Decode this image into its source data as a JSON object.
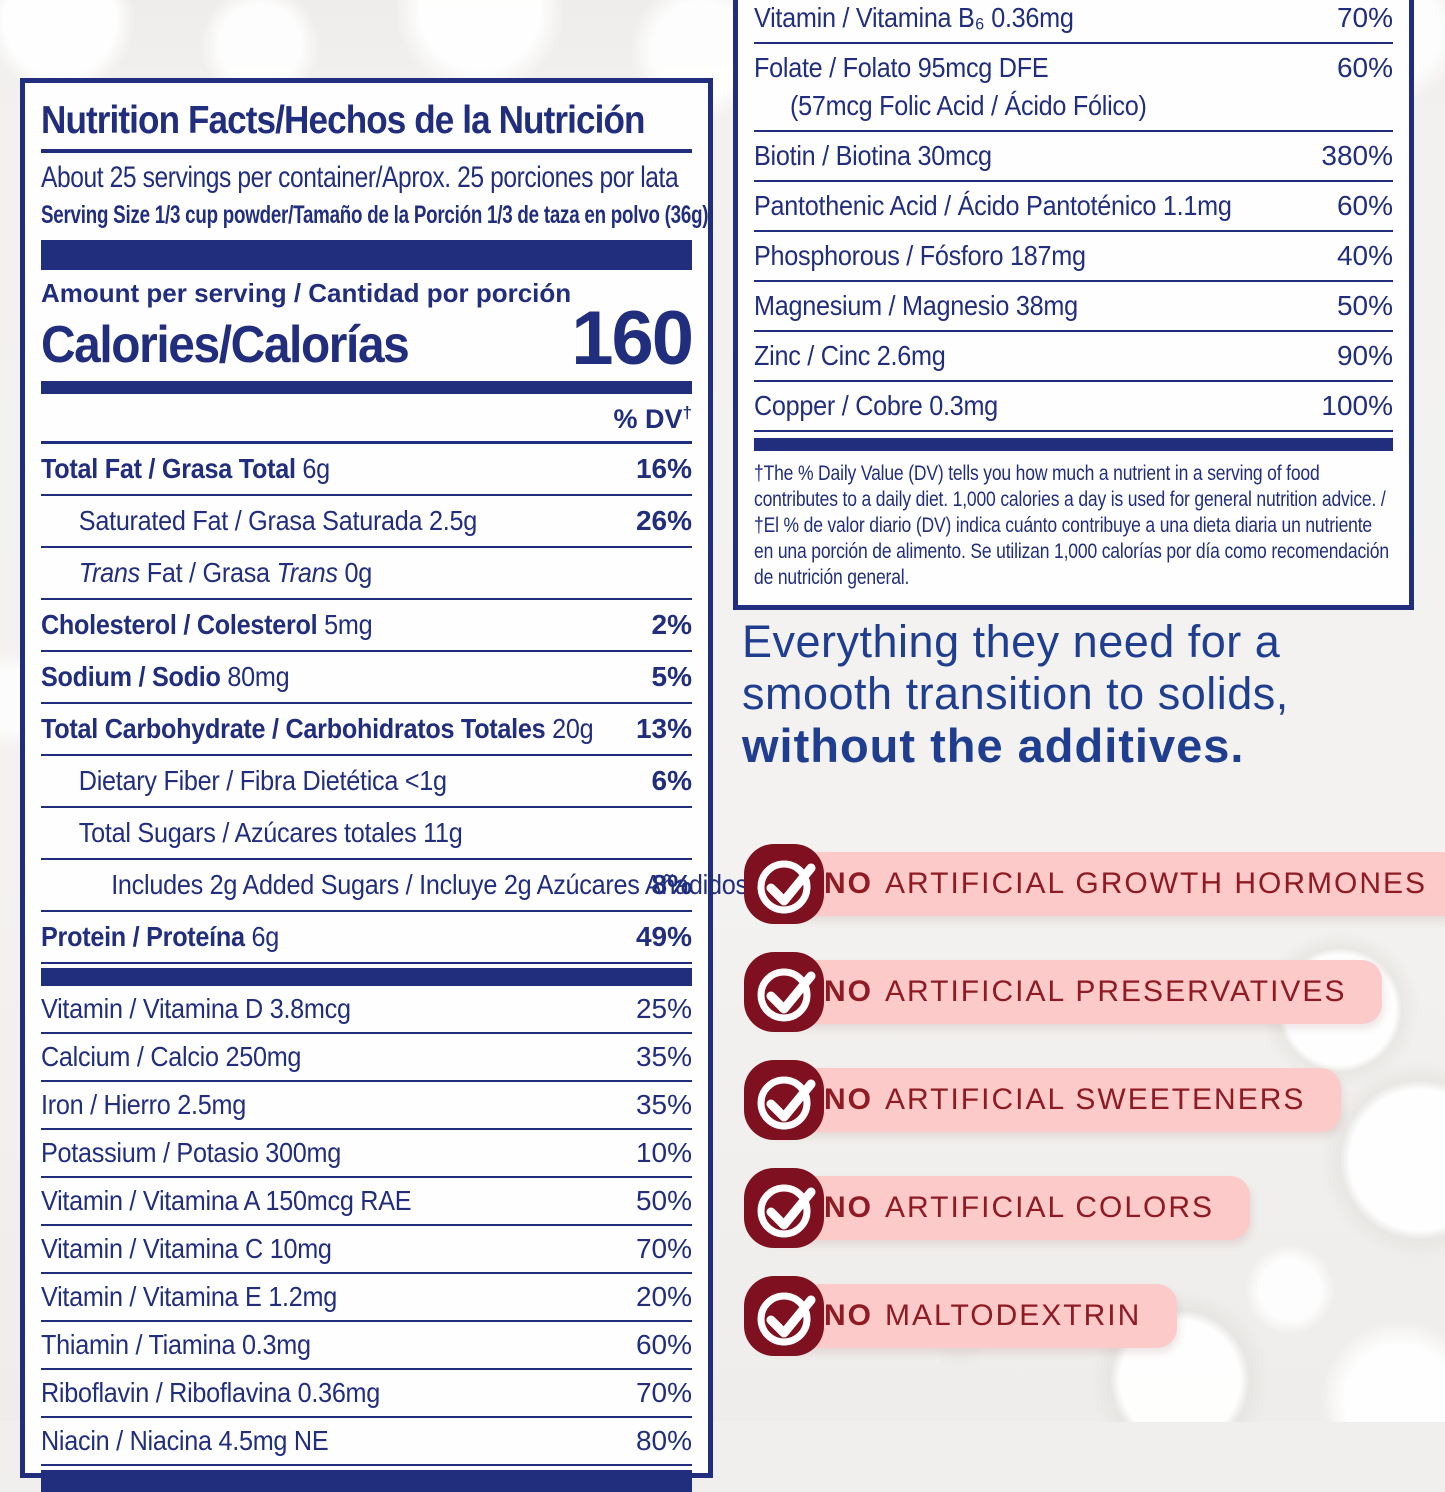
{
  "colors": {
    "navy": "#212e7e",
    "marketing_blue": "#1f3e8f",
    "badge_text_maroon": "#8e1a24",
    "badge_icon_maroon": "#7f1020",
    "badge_pink": "#fccac8",
    "panel_white": "#fffefe",
    "background": "#f1efed"
  },
  "label": {
    "title": "Nutrition Facts/Hechos de la Nutrición",
    "servings": "About 25 servings per container/Aprox. 25 porciones por lata",
    "serving_size": "Serving Size 1/3 cup powder/Tamaño de la Porción 1/3 de taza en polvo (36g)",
    "amount_label": "Amount per serving / Cantidad por porción",
    "calories_label": "Calories/Calorías",
    "calories_value": "160",
    "dv_header": "% DV",
    "dv_dagger": "†",
    "main_rows": [
      {
        "name": "Total Fat / Grasa Total",
        "amount": "6g",
        "dv": "16%",
        "b": true,
        "dvb": true,
        "i": 0
      },
      {
        "name": "Saturated Fat / Grasa Saturada",
        "amount": "2.5g",
        "dv": "26%",
        "b": false,
        "dvb": true,
        "i": 1
      },
      {
        "parts": [
          {
            "t": "Trans",
            "it": true
          },
          {
            "t": " Fat / Grasa ",
            "it": false
          },
          {
            "t": "Trans",
            "it": true
          }
        ],
        "amount": "0g",
        "dv": "",
        "b": false,
        "dvb": false,
        "i": 1
      },
      {
        "name": "Cholesterol / Colesterol",
        "amount": "5mg",
        "dv": "2%",
        "b": true,
        "dvb": true,
        "i": 0
      },
      {
        "name": "Sodium / Sodio",
        "amount": "80mg",
        "dv": "5%",
        "b": true,
        "dvb": true,
        "i": 0
      },
      {
        "name": "Total Carbohydrate / Carbohidratos Totales",
        "amount": "20g",
        "dv": "13%",
        "b": true,
        "dvb": true,
        "i": 0
      },
      {
        "name": "Dietary Fiber / Fibra Dietética",
        "amount": "<1g",
        "dv": "6%",
        "b": false,
        "dvb": true,
        "i": 1
      },
      {
        "name": "Total Sugars / Azúcares totales",
        "amount": "11g",
        "dv": "",
        "b": false,
        "dvb": false,
        "i": 1
      },
      {
        "name": "Includes 2g Added Sugars / Incluye 2g Azúcares Añadidos",
        "amount": "",
        "dv": "8%",
        "b": false,
        "dvb": true,
        "i": 2
      },
      {
        "name": "Protein / Proteína",
        "amount": "6g",
        "dv": "49%",
        "b": true,
        "dvb": true,
        "i": 0
      }
    ],
    "vitamin_rows": [
      {
        "name": "Vitamin / Vitamina D",
        "amount": "3.8mcg",
        "dv": "25%"
      },
      {
        "name": "Calcium / Calcio",
        "amount": "250mg",
        "dv": "35%"
      },
      {
        "name": "Iron / Hierro",
        "amount": "2.5mg",
        "dv": "35%"
      },
      {
        "name": "Potassium / Potasio",
        "amount": "300mg",
        "dv": "10%"
      },
      {
        "name": "Vitamin / Vitamina A",
        "amount": "150mcg RAE",
        "dv": "50%"
      },
      {
        "name": "Vitamin / Vitamina C",
        "amount": "10mg",
        "dv": "70%"
      },
      {
        "name": "Vitamin / Vitamina E",
        "amount": "1.2mg",
        "dv": "20%"
      },
      {
        "name": "Thiamin / Tiamina",
        "amount": "0.3mg",
        "dv": "60%"
      },
      {
        "name": "Riboflavin / Riboflavina",
        "amount": "0.36mg",
        "dv": "70%"
      },
      {
        "name": "Niacin / Niacina",
        "amount": "4.5mg NE",
        "dv": "80%"
      }
    ],
    "right_rows": [
      {
        "name": "Vitamin / Vitamina B₆",
        "amount": "0.36mg",
        "dv": "70%"
      },
      {
        "name": "Folate / Folato",
        "amount": "95mcg DFE",
        "dv": "60%",
        "sub": "(57mcg Folic Acid / Ácido Fólico)"
      },
      {
        "name": "Biotin / Biotina",
        "amount": "30mcg",
        "dv": "380%"
      },
      {
        "name": "Pantothenic Acid / Ácido Pantoténico",
        "amount": "1.1mg",
        "dv": "60%"
      },
      {
        "name": "Phosphorous / Fósforo",
        "amount": "187mg",
        "dv": "40%"
      },
      {
        "name": "Magnesium / Magnesio",
        "amount": "38mg",
        "dv": "50%"
      },
      {
        "name": "Zinc / Cinc",
        "amount": "2.6mg",
        "dv": "90%"
      },
      {
        "name": "Copper / Cobre",
        "amount": "0.3mg",
        "dv": "100%"
      }
    ],
    "footnote": "†The % Daily Value (DV) tells you how much a nutrient in a serving of food contributes to a daily diet. 1,000 calories a day is used for general nutrition advice. / †El % de valor diario (DV) indica cuánto contribuye a una dieta diaria un nutriente en una porción de alimento. Se utilizan 1,000 calorías por día como recomendación de nutrición general."
  },
  "marketing": {
    "line1": "Everything they need for a",
    "line2": "smooth transition to solids,",
    "line3": "without the additives."
  },
  "badges": [
    {
      "no": "NO",
      "text": "ARTIFICIAL GROWTH HORMONES"
    },
    {
      "no": "NO",
      "text": "ARTIFICIAL PRESERVATIVES"
    },
    {
      "no": "NO",
      "text": "ARTIFICIAL SWEETENERS"
    },
    {
      "no": "NO",
      "text": "ARTIFICIAL COLORS"
    },
    {
      "no": "NO",
      "text": "MALTODEXTRIN"
    }
  ]
}
